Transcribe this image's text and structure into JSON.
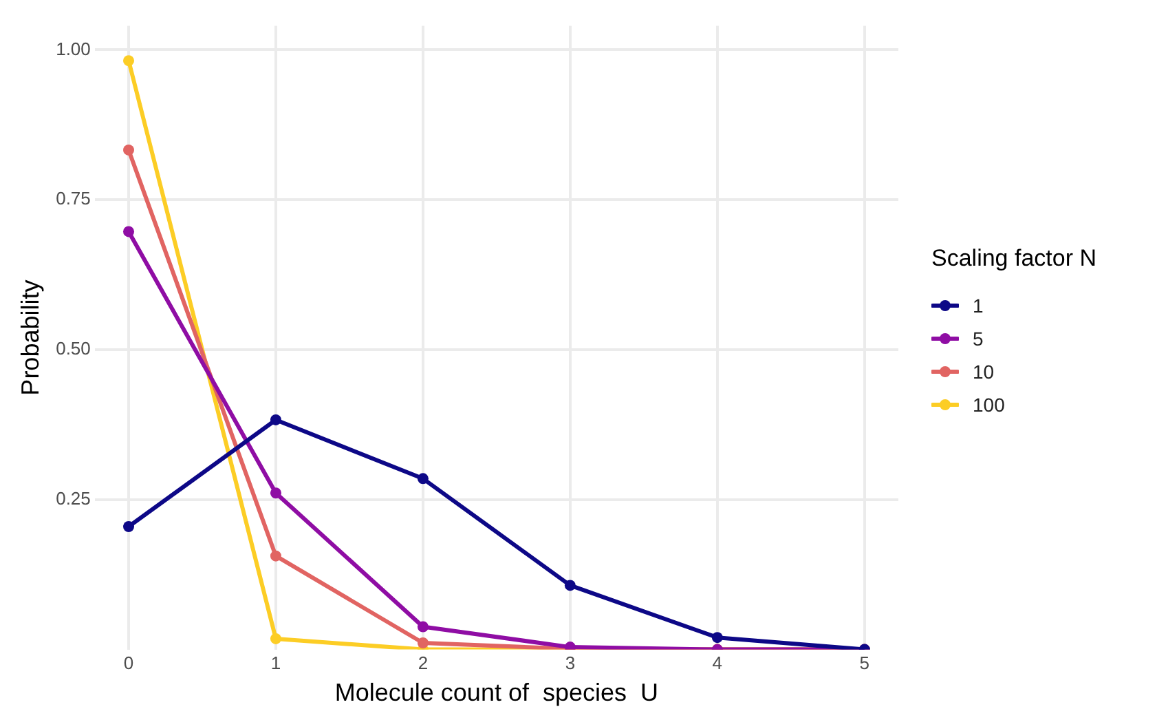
{
  "chart_data": {
    "type": "line",
    "xlabel": "Molecule count of  species  U",
    "ylabel": "Probability",
    "legend_title": "Scaling factor  N",
    "x": [
      0,
      1,
      2,
      3,
      4,
      5
    ],
    "series": [
      {
        "name": "1",
        "color": "#0d0887",
        "values": [
          0.205,
          0.383,
          0.285,
          0.107,
          0.02,
          0.0
        ]
      },
      {
        "name": "5",
        "color": "#8f0da4",
        "values": [
          0.697,
          0.261,
          0.038,
          0.004,
          0.0,
          0.0
        ]
      },
      {
        "name": "10",
        "color": "#e16462",
        "values": [
          0.833,
          0.156,
          0.011,
          0.001,
          0.0,
          0.0
        ]
      },
      {
        "name": "100",
        "color": "#fccd25",
        "values": [
          0.982,
          0.018,
          0.0,
          0.0,
          0.0,
          0.0
        ]
      }
    ],
    "xlim": [
      -0.23,
      5.23
    ],
    "xticks": [
      0,
      1,
      2,
      3,
      4,
      5
    ],
    "ylim": [
      0,
      1.04
    ],
    "yticks": [
      0.25,
      {
        "value": 0.5,
        "label": "0.50"
      },
      0.75,
      {
        "value": 1,
        "label": "1.00"
      }
    ],
    "grid": true,
    "legend": "right",
    "marker": "circle",
    "line_style": "solid"
  }
}
